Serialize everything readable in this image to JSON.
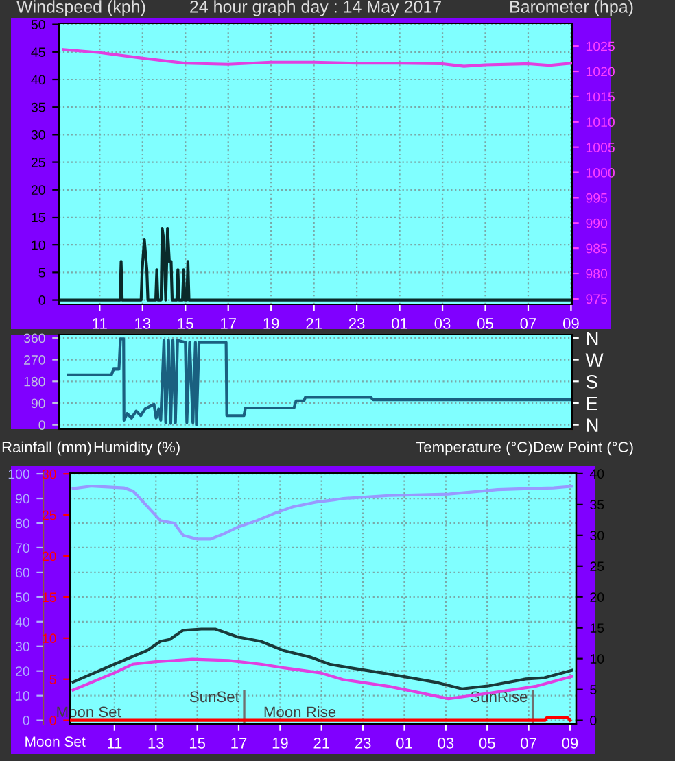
{
  "chart_data": [
    {
      "type": "line",
      "title": "24 hour graph day : 14 May 2017",
      "ylabel": "Windspeed (kph)",
      "y2label": "Barometer (hpa)",
      "xlim": [
        "2017-05-14T09:06",
        "2017-05-15T09:03"
      ],
      "xticks": [
        {
          "value": "2017-05-14T11:00",
          "label": "11"
        },
        {
          "value": "2017-05-14T13:00",
          "label": "13"
        },
        {
          "value": "2017-05-14T15:00",
          "label": "15"
        },
        {
          "value": "2017-05-14T17:00",
          "label": "17"
        },
        {
          "value": "2017-05-14T19:00",
          "label": "19"
        },
        {
          "value": "2017-05-14T21:00",
          "label": "21"
        },
        {
          "value": "2017-05-14T23:00",
          "label": "23"
        },
        {
          "value": "2017-05-15T01:00",
          "label": "01"
        },
        {
          "value": "2017-05-15T03:00",
          "label": "03"
        },
        {
          "value": "2017-05-15T05:00",
          "label": "05"
        },
        {
          "value": "2017-05-15T07:00",
          "label": "07"
        },
        {
          "value": "2017-05-15T09:00",
          "label": "09"
        }
      ],
      "ylim": [
        -0.8,
        50.2
      ],
      "yticks": [
        0,
        5,
        10,
        15,
        20,
        25,
        30,
        35,
        40,
        45,
        50
      ],
      "y2lim": [
        973.9,
        1029.5
      ],
      "y2ticks": [
        975,
        980,
        985,
        990,
        995,
        1000,
        1005,
        1010,
        1015,
        1020,
        1025
      ],
      "grid": true,
      "series": [
        {
          "color": "#0a2a2a",
          "x": [
            "2017-05-14T09:06",
            "2017-05-14T11:57",
            "2017-05-14T12:00",
            "2017-05-14T12:03",
            "2017-05-14T12:56",
            "2017-05-14T12:59",
            "2017-05-14T13:05",
            "2017-05-14T13:12",
            "2017-05-14T13:15",
            "2017-05-14T13:37",
            "2017-05-14T13:40",
            "2017-05-14T13:43",
            "2017-05-14T13:52",
            "2017-05-14T13:55",
            "2017-05-14T13:59",
            "2017-05-14T14:05",
            "2017-05-14T14:10",
            "2017-05-14T14:15",
            "2017-05-14T14:20",
            "2017-05-14T14:23",
            "2017-05-14T14:36",
            "2017-05-14T14:39",
            "2017-05-14T14:42",
            "2017-05-14T14:52",
            "2017-05-14T14:55",
            "2017-05-14T14:58",
            "2017-05-14T15:04",
            "2017-05-14T15:07",
            "2017-05-14T15:10",
            "2017-05-15T09:00"
          ],
          "values": [
            0,
            0,
            7,
            0,
            0,
            5.5,
            11,
            5.5,
            0,
            0,
            5.5,
            0,
            0,
            13,
            11,
            0,
            13,
            7,
            7,
            0,
            0,
            5.5,
            0,
            0,
            5.5,
            0,
            0,
            7,
            0,
            0
          ]
        },
        {
          "axis": "y2",
          "color": "#e040e0",
          "x": [
            "2017-05-14T09:18",
            "2017-05-14T11:00",
            "2017-05-14T13:00",
            "2017-05-14T15:00",
            "2017-05-14T17:00",
            "2017-05-14T19:00",
            "2017-05-14T21:00",
            "2017-05-14T23:00",
            "2017-05-15T01:00",
            "2017-05-15T03:00",
            "2017-05-15T04:00",
            "2017-05-15T05:00",
            "2017-05-15T07:00",
            "2017-05-15T08:00",
            "2017-05-15T09:00"
          ],
          "values": [
            1024.3,
            1023.7,
            1022.6,
            1021.6,
            1021.4,
            1021.8,
            1021.8,
            1021.6,
            1021.6,
            1021.5,
            1021.0,
            1021.3,
            1021.5,
            1021.2,
            1021.6
          ]
        }
      ]
    },
    {
      "type": "line",
      "xlim": [
        "2017-05-14T09:06",
        "2017-05-15T09:03"
      ],
      "ylim": [
        -18,
        374
      ],
      "yticks": [
        0,
        90,
        180,
        270,
        360
      ],
      "y2_categories": [
        "N",
        "W",
        "S",
        "E",
        "N"
      ],
      "tick_labels": "y",
      "grid": "y",
      "series": [
        {
          "color": "#1a6080",
          "x": [
            "2017-05-14T09:32",
            "2017-05-14T11:33",
            "2017-05-14T11:39",
            "2017-05-14T11:54",
            "2017-05-14T11:58",
            "2017-05-14T12:07",
            "2017-05-14T12:08",
            "2017-05-14T12:17",
            "2017-05-14T12:29",
            "2017-05-14T12:42",
            "2017-05-14T12:55",
            "2017-05-14T13:07",
            "2017-05-14T13:20",
            "2017-05-14T13:32",
            "2017-05-14T13:38",
            "2017-05-14T13:45",
            "2017-05-14T13:51",
            "2017-05-14T14:00",
            "2017-05-14T14:05",
            "2017-05-14T14:13",
            "2017-05-14T14:19",
            "2017-05-14T14:25",
            "2017-05-14T14:32",
            "2017-05-14T14:38",
            "2017-05-14T15:00",
            "2017-05-14T15:04",
            "2017-05-14T15:12",
            "2017-05-14T15:21",
            "2017-05-14T15:28",
            "2017-05-14T15:31",
            "2017-05-14T15:38",
            "2017-05-14T16:54",
            "2017-05-14T16:56",
            "2017-05-14T17:44",
            "2017-05-14T17:48",
            "2017-05-14T20:04",
            "2017-05-14T20:10",
            "2017-05-14T20:32",
            "2017-05-14T20:36",
            "2017-05-14T23:39",
            "2017-05-14T23:46",
            "2017-05-15T08:59"
          ],
          "values": [
            207,
            207,
            231,
            231,
            356,
            356,
            19,
            47,
            28,
            57,
            38,
            66,
            76,
            85,
            28,
            66,
            19,
            350,
            9,
            350,
            6,
            350,
            9,
            350,
            341,
            9,
            341,
            9,
            341,
            0,
            341,
            341,
            38,
            38,
            70,
            70,
            99,
            99,
            114,
            114,
            104,
            104
          ]
        }
      ]
    },
    {
      "type": "line",
      "ylabel": "Humidity (%)",
      "y3label": "Rainfall (mm)",
      "y2label": "Temperature (°C)Dew Point (°C)",
      "xlim": [
        "2017-05-14T08:51",
        "2017-05-15T09:18"
      ],
      "xticks": [
        {
          "value": "2017-05-14T11:00",
          "label": "11"
        },
        {
          "value": "2017-05-14T13:00",
          "label": "13"
        },
        {
          "value": "2017-05-14T15:00",
          "label": "15"
        },
        {
          "value": "2017-05-14T17:00",
          "label": "17"
        },
        {
          "value": "2017-05-14T19:00",
          "label": "19"
        },
        {
          "value": "2017-05-14T21:00",
          "label": "21"
        },
        {
          "value": "2017-05-14T23:00",
          "label": "23"
        },
        {
          "value": "2017-05-15T01:00",
          "label": "01"
        },
        {
          "value": "2017-05-15T03:00",
          "label": "03"
        },
        {
          "value": "2017-05-15T05:00",
          "label": "05"
        },
        {
          "value": "2017-05-15T07:00",
          "label": "07"
        },
        {
          "value": "2017-05-15T09:00",
          "label": "09"
        }
      ],
      "ylim": [
        -1.5,
        100.3
      ],
      "yticks": [
        0,
        10,
        20,
        30,
        40,
        50,
        60,
        70,
        80,
        90,
        100
      ],
      "y2lim": [
        -0.6,
        40.1
      ],
      "y2ticks": [
        0,
        5,
        10,
        15,
        20,
        25,
        30,
        35,
        40
      ],
      "y3lim": [
        -0.45,
        30.1
      ],
      "y3ticks": [
        0,
        5,
        10,
        15,
        20,
        25,
        30
      ],
      "grid": true,
      "ref_lines": [
        {
          "axis": "x",
          "value": "2017-05-14T17:16",
          "label": "SunSet",
          "color": "#707070"
        },
        {
          "axis": "x",
          "value": "2017-05-15T07:12",
          "label": "SunRise",
          "color": "#707070"
        }
      ],
      "annotations": [
        {
          "text": "Moon Set",
          "x": "2017-05-14T09:45",
          "y": 0
        },
        {
          "text": "Moon Rise",
          "x": "2017-05-14T19:57",
          "y": 0
        },
        "Moon Set"
      ],
      "series": [
        {
          "color": "#9999ff",
          "x": [
            "2017-05-14T09:00",
            "2017-05-14T09:55",
            "2017-05-14T11:27",
            "2017-05-14T11:54",
            "2017-05-14T12:47",
            "2017-05-14T13:13",
            "2017-05-14T13:53",
            "2017-05-14T14:19",
            "2017-05-14T14:59",
            "2017-05-14T15:38",
            "2017-05-14T16:18",
            "2017-05-14T16:58",
            "2017-05-14T17:52",
            "2017-05-14T18:44",
            "2017-05-14T19:37",
            "2017-05-14T20:43",
            "2017-05-14T21:36",
            "2017-05-14T22:03",
            "2017-05-15T00:15",
            "2017-05-15T03:08",
            "2017-05-15T05:30",
            "2017-05-15T08:12",
            "2017-05-15T09:05"
          ],
          "values": [
            94,
            95,
            94.3,
            93,
            85,
            81,
            80,
            75,
            73.5,
            73.5,
            75.7,
            78.4,
            81,
            84,
            86.6,
            88.5,
            89.4,
            90,
            91.2,
            91.8,
            93.6,
            94.3,
            94.9
          ]
        },
        {
          "axis": "y2",
          "color": "#1a3a3a",
          "x": [
            "2017-05-14T09:00",
            "2017-05-14T11:00",
            "2017-05-14T12:34",
            "2017-05-14T13:13",
            "2017-05-14T13:40",
            "2017-05-14T14:19",
            "2017-05-14T15:12",
            "2017-05-14T15:52",
            "2017-05-14T16:58",
            "2017-05-14T18:04",
            "2017-05-14T19:11",
            "2017-05-14T20:30",
            "2017-05-14T21:23",
            "2017-05-14T22:03",
            "2017-05-15T00:15",
            "2017-05-15T02:28",
            "2017-05-15T03:47",
            "2017-05-15T05:06",
            "2017-05-15T06:52",
            "2017-05-15T07:46",
            "2017-05-15T09:05"
          ],
          "values": [
            6.2,
            9.1,
            11.3,
            12.8,
            13.1,
            14.6,
            14.8,
            14.8,
            13.5,
            12.8,
            11.3,
            10.2,
            9.1,
            8.7,
            7.5,
            6.2,
            5.1,
            5.6,
            6.7,
            6.9,
            8.1
          ]
        },
        {
          "axis": "y2",
          "color": "#e040e0",
          "x": [
            "2017-05-14T09:00",
            "2017-05-14T11:00",
            "2017-05-14T11:53",
            "2017-05-14T13:00",
            "2017-05-14T14:46",
            "2017-05-14T16:31",
            "2017-05-14T18:04",
            "2017-05-14T19:11",
            "2017-05-14T20:56",
            "2017-05-14T22:02",
            "2017-05-15T00:15",
            "2017-05-15T03:08",
            "2017-05-15T05:06",
            "2017-05-15T07:19",
            "2017-05-15T09:05"
          ],
          "values": [
            4.9,
            7.7,
            9.1,
            9.5,
            9.9,
            9.7,
            9.1,
            8.5,
            7.7,
            6.6,
            5.5,
            3.5,
            4.4,
            5.5,
            7.1
          ]
        },
        {
          "axis": "y3",
          "color": "#ff0000",
          "x": [
            "2017-05-14T08:54",
            "2017-05-15T07:48",
            "2017-05-15T07:52",
            "2017-05-15T08:54",
            "2017-05-15T09:00"
          ],
          "values": [
            0,
            0,
            0.3,
            0.3,
            0
          ]
        }
      ]
    }
  ]
}
